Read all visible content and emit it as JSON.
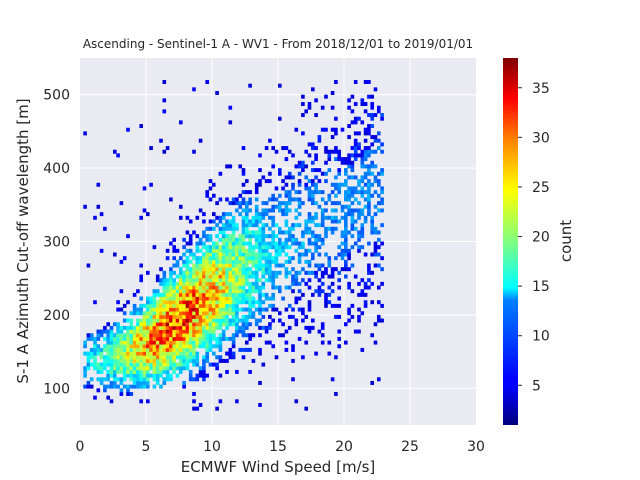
{
  "chart_data": {
    "type": "heatmap",
    "title": "Ascending - Sentinel-1 A - WV1 - From 2018/12/01 to 2019/01/01",
    "xlabel": "ECMWF Wind Speed [m/s]",
    "ylabel": "S-1 A Azimuth Cut-off wavelength [m]",
    "xlim": [
      0,
      30
    ],
    "ylim": [
      50,
      550
    ],
    "x_ticks": [
      "0",
      "5",
      "10",
      "15",
      "20",
      "25",
      "30"
    ],
    "y_ticks": [
      "100",
      "200",
      "300",
      "400",
      "500"
    ],
    "colorbar": {
      "label": "count",
      "min": 1,
      "max": 38,
      "colormap": "jet",
      "ticks": [
        "5",
        "10",
        "15",
        "20",
        "25",
        "30",
        "35"
      ]
    },
    "background_color": "#eaeaf2",
    "grid": true,
    "density_model": {
      "ridge_x": [
        1.5,
        3,
        5,
        7,
        9,
        11,
        13,
        15,
        17,
        19
      ],
      "ridge_y": [
        140,
        145,
        160,
        185,
        215,
        245,
        270,
        290,
        310,
        330
      ],
      "peak_x": 7.5,
      "peak_y": 195,
      "peak_count": 38
    }
  }
}
